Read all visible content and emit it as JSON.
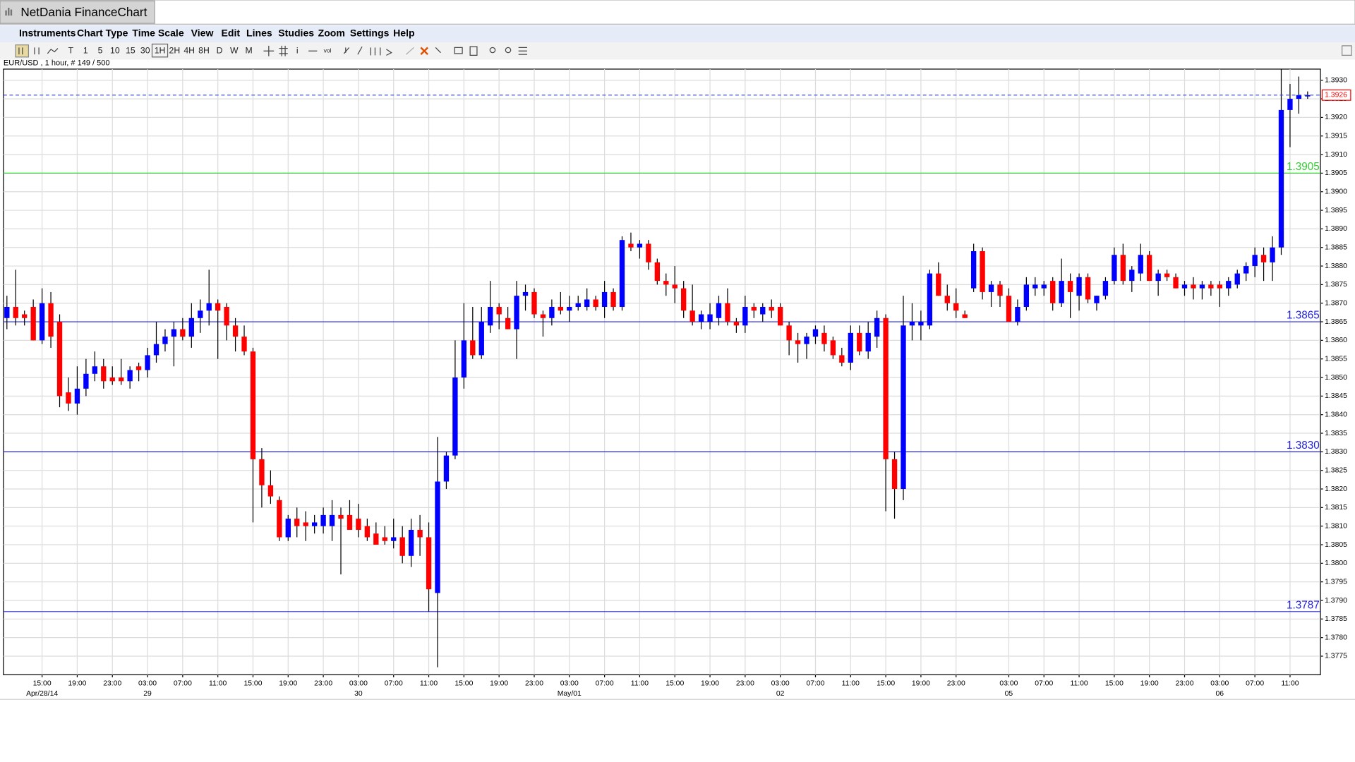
{
  "window": {
    "title": "NetDania FinanceChart",
    "menu": [
      "Instruments",
      "Chart Type",
      "Time Scale",
      "View",
      "Edit",
      "Lines",
      "Studies",
      "Zoom",
      "Settings",
      "Help"
    ],
    "toolbar": [
      "T",
      "1",
      "5",
      "10",
      "15",
      "30",
      "1H",
      "2H",
      "4H",
      "8H",
      "D",
      "W",
      "M"
    ],
    "tools": [
      "i",
      "vol"
    ]
  },
  "chart_data": {
    "type": "candlestick",
    "subtitle": "EUR/USD , 1 hour, # 149 / 500",
    "up_color": "#0000ff",
    "down_color": "#ff0000",
    "grid": true,
    "ylim": [
      1.377,
      1.3933
    ],
    "yticks": [
      1.3775,
      {
        "value": 1.378,
        "label": "1.3780"
      },
      1.3785,
      {
        "value": 1.379,
        "label": "1.3790"
      },
      1.3795,
      {
        "value": 1.38,
        "label": "1.3800"
      },
      1.3805,
      {
        "value": 1.381,
        "label": "1.3810"
      },
      1.3815,
      {
        "value": 1.382,
        "label": "1.3820"
      },
      1.3825,
      {
        "value": 1.383,
        "label": "1.3830"
      },
      1.3835,
      {
        "value": 1.384,
        "label": "1.3840"
      },
      1.3845,
      {
        "value": 1.385,
        "label": "1.3850"
      },
      1.3855,
      {
        "value": 1.386,
        "label": "1.3860"
      },
      1.3865,
      {
        "value": 1.387,
        "label": "1.3870"
      },
      1.3875,
      {
        "value": 1.388,
        "label": "1.3880"
      },
      1.3885,
      {
        "value": 1.389,
        "label": "1.3890"
      },
      1.3895,
      {
        "value": 1.39,
        "label": "1.3900"
      },
      1.3905,
      {
        "value": 1.391,
        "label": "1.3910"
      },
      1.3915,
      {
        "value": 1.392,
        "label": "1.3920"
      },
      1.3925,
      {
        "value": 1.393,
        "label": "1.3930"
      }
    ],
    "levels": [
      {
        "value": 1.3905,
        "color": "#33cc33"
      },
      {
        "value": 1.3865,
        "color": "#2222dd"
      },
      {
        "value": 1.383,
        "label": "1.3830",
        "color": "#2222dd"
      },
      {
        "value": 1.3787,
        "color": "#2222dd"
      }
    ],
    "last_price": 1.3926,
    "categories": [
      null,
      null,
      null,
      null,
      "15:00",
      null,
      null,
      null,
      "19:00",
      null,
      null,
      null,
      "23:00",
      null,
      null,
      null,
      "03:00",
      null,
      null,
      null,
      "07:00",
      null,
      null,
      null,
      "11:00",
      null,
      null,
      null,
      "15:00",
      null,
      null,
      null,
      "19:00",
      null,
      null,
      null,
      "23:00",
      null,
      null,
      null,
      "03:00",
      null,
      null,
      null,
      "07:00",
      null,
      null,
      null,
      "11:00",
      null,
      null,
      null,
      "15:00",
      null,
      null,
      null,
      "19:00",
      null,
      null,
      null,
      "23:00",
      null,
      null,
      null,
      "03:00",
      null,
      null,
      null,
      "07:00",
      null,
      null,
      null,
      "11:00",
      null,
      null,
      null,
      "15:00",
      null,
      null,
      null,
      "19:00",
      null,
      null,
      null,
      "23:00",
      null,
      null,
      null,
      "03:00",
      null,
      null,
      null,
      "07:00",
      null,
      null,
      null,
      "11:00",
      null,
      null,
      null,
      "15:00",
      null,
      null,
      null,
      "19:00",
      null,
      null,
      null,
      "23:00",
      null,
      null,
      null,
      null,
      null,
      "03:00",
      null,
      null,
      null,
      "07:00",
      null,
      null,
      null,
      "11:00",
      null,
      null,
      null,
      "15:00",
      null,
      null,
      null,
      "19:00",
      null,
      null,
      null,
      "23:00",
      null,
      null,
      null,
      "03:00",
      null,
      null,
      null,
      "07:00",
      null,
      null,
      null,
      "11:00",
      null,
      null
    ],
    "category_dates": [
      null,
      null,
      null,
      null,
      "Apr/28/14",
      null,
      null,
      null,
      null,
      null,
      null,
      null,
      null,
      null,
      null,
      null,
      "29",
      null,
      null,
      null,
      null,
      null,
      null,
      null,
      null,
      null,
      null,
      null,
      null,
      null,
      null,
      null,
      null,
      null,
      null,
      null,
      null,
      null,
      null,
      null,
      "30",
      null,
      null,
      null,
      null,
      null,
      null,
      null,
      null,
      null,
      null,
      null,
      null,
      null,
      null,
      null,
      null,
      null,
      null,
      null,
      null,
      null,
      null,
      null,
      "May/01",
      null,
      null,
      null,
      null,
      null,
      null,
      null,
      null,
      null,
      null,
      null,
      null,
      null,
      null,
      null,
      null,
      null,
      null,
      null,
      null,
      null,
      null,
      null,
      "02",
      null,
      null,
      null,
      null,
      null,
      null,
      null,
      null,
      null,
      null,
      null,
      null,
      null,
      null,
      null,
      null,
      null,
      null,
      null,
      null,
      null,
      null,
      null,
      null,
      null,
      "05",
      null,
      null,
      null,
      null,
      null,
      null,
      null,
      null,
      null,
      null,
      null,
      null,
      null,
      null,
      null,
      null,
      null,
      null,
      null,
      null,
      null,
      null,
      null,
      "06",
      null,
      null,
      null,
      null,
      null,
      null,
      null,
      null,
      null,
      null
    ],
    "open": [
      1.3866,
      1.3869,
      1.3867,
      1.3869,
      1.386,
      1.387,
      1.3865,
      1.3846,
      1.3843,
      1.3847,
      1.3851,
      1.3853,
      1.385,
      1.385,
      1.3849,
      1.3853,
      1.3852,
      1.3856,
      1.3859,
      1.3861,
      1.3863,
      1.3861,
      1.3866,
      1.3868,
      1.387,
      1.3869,
      1.3864,
      1.3861,
      1.3857,
      1.3828,
      1.3821,
      1.3817,
      1.3807,
      1.3812,
      1.3811,
      1.381,
      1.381,
      1.381,
      1.3813,
      1.3813,
      1.3812,
      1.381,
      1.3808,
      1.3807,
      1.3806,
      1.3807,
      1.3802,
      1.3809,
      1.3807,
      1.3792,
      1.3822,
      1.3829,
      1.385,
      1.386,
      1.3856,
      1.3864,
      1.3869,
      1.3866,
      1.3863,
      1.3872,
      1.3873,
      1.3867,
      1.3866,
      1.3869,
      1.3868,
      1.3869,
      1.3869,
      1.3871,
      1.3869,
      1.3873,
      1.3869,
      1.3886,
      1.3885,
      1.3886,
      1.3881,
      1.3876,
      1.3875,
      1.3874,
      1.3868,
      1.3865,
      1.3865,
      1.3866,
      1.387,
      1.3865,
      1.3864,
      1.3869,
      1.3867,
      1.3869,
      1.3869,
      1.3864,
      1.386,
      1.3859,
      1.3861,
      1.3862,
      1.386,
      1.3856,
      1.3854,
      1.3862,
      1.3857,
      1.3861,
      1.3866,
      1.3828,
      1.382,
      1.3864,
      1.3864,
      1.3864,
      1.3878,
      1.3872,
      1.387,
      1.3867,
      1.3874,
      1.3884,
      1.3873,
      1.3875,
      1.3872,
      1.3865,
      1.3869,
      1.3874,
      1.3874,
      1.3876,
      1.387,
      1.3876,
      1.3872,
      1.3877,
      1.387,
      1.3872,
      1.3876,
      1.3883,
      1.3876,
      1.3878,
      1.3883,
      1.3876,
      1.3878,
      1.3877,
      1.3874,
      1.3875,
      1.3874,
      1.3875,
      1.3875,
      1.3874,
      1.3875,
      1.3878,
      1.388,
      1.3883,
      1.3881,
      1.3885,
      1.3922,
      1.3925,
      1.3926
    ],
    "high": [
      1.3872,
      1.3879,
      1.3868,
      1.3871,
      1.3874,
      1.3873,
      1.3867,
      1.385,
      1.3853,
      1.3855,
      1.3857,
      1.3855,
      1.3853,
      1.3855,
      1.3853,
      1.3854,
      1.3858,
      1.3865,
      1.3863,
      1.3865,
      1.3866,
      1.387,
      1.3871,
      1.3879,
      1.3871,
      1.387,
      1.3866,
      1.3864,
      1.3858,
      1.3831,
      1.3825,
      1.3818,
      1.3813,
      1.3815,
      1.3814,
      1.3813,
      1.3815,
      1.3817,
      1.3815,
      1.3817,
      1.3816,
      1.3812,
      1.3811,
      1.381,
      1.3812,
      1.381,
      1.3812,
      1.3813,
      1.3811,
      1.3834,
      1.383,
      1.386,
      1.387,
      1.3869,
      1.3869,
      1.3876,
      1.387,
      1.3869,
      1.3876,
      1.3875,
      1.3874,
      1.3868,
      1.3871,
      1.3873,
      1.3872,
      1.3872,
      1.3874,
      1.3872,
      1.3876,
      1.3874,
      1.3888,
      1.3889,
      1.3887,
      1.3887,
      1.3882,
      1.3878,
      1.388,
      1.3876,
      1.3875,
      1.3868,
      1.387,
      1.3872,
      1.3874,
      1.3866,
      1.3872,
      1.387,
      1.387,
      1.3871,
      1.387,
      1.3865,
      1.3862,
      1.3862,
      1.3864,
      1.3864,
      1.3861,
      1.3858,
      1.3864,
      1.3864,
      1.3865,
      1.3868,
      1.3867,
      1.383,
      1.3872,
      1.387,
      1.3868,
      1.3879,
      1.3881,
      1.3875,
      1.3874,
      1.3868,
      1.3886,
      1.3885,
      1.3876,
      1.3876,
      1.3874,
      1.3871,
      1.3877,
      1.3877,
      1.3876,
      1.3877,
      1.3882,
      1.3878,
      1.3878,
      1.3878,
      1.3872,
      1.3877,
      1.3885,
      1.3886,
      1.388,
      1.3886,
      1.3884,
      1.3879,
      1.3879,
      1.3878,
      1.3876,
      1.3877,
      1.3876,
      1.3876,
      1.3876,
      1.3877,
      1.3879,
      1.3881,
      1.3885,
      1.3885,
      1.3888,
      1.3933,
      1.3929,
      1.3931,
      1.3927
    ],
    "low": [
      1.3863,
      1.3864,
      1.3864,
      1.386,
      1.3859,
      1.3858,
      1.3842,
      1.3841,
      1.384,
      1.3845,
      1.3849,
      1.3847,
      1.3848,
      1.3848,
      1.3847,
      1.3849,
      1.385,
      1.3854,
      1.3857,
      1.3853,
      1.386,
      1.3858,
      1.3862,
      1.3864,
      1.3855,
      1.386,
      1.3857,
      1.3856,
      1.3811,
      1.3815,
      1.3816,
      1.3806,
      1.3806,
      1.3807,
      1.3806,
      1.3808,
      1.3808,
      1.3806,
      1.3797,
      1.381,
      1.3807,
      1.3806,
      1.3805,
      1.3805,
      1.3804,
      1.38,
      1.3799,
      1.3802,
      1.3787,
      1.3772,
      1.382,
      1.3828,
      1.3847,
      1.3855,
      1.3855,
      1.3862,
      1.3863,
      1.3863,
      1.3855,
      1.3868,
      1.3866,
      1.3861,
      1.3864,
      1.3867,
      1.3865,
      1.3868,
      1.3868,
      1.3868,
      1.3866,
      1.3868,
      1.3868,
      1.3884,
      1.3882,
      1.3879,
      1.3875,
      1.3872,
      1.387,
      1.3866,
      1.3864,
      1.3863,
      1.3863,
      1.3864,
      1.3864,
      1.3862,
      1.3862,
      1.3866,
      1.3865,
      1.3866,
      1.3864,
      1.3856,
      1.3854,
      1.3855,
      1.3859,
      1.3857,
      1.3855,
      1.3853,
      1.3852,
      1.3856,
      1.3855,
      1.3858,
      1.3814,
      1.3812,
      1.3817,
      1.386,
      1.386,
      1.3863,
      1.3872,
      1.3868,
      1.3866,
      1.3866,
      1.3873,
      1.3871,
      1.3869,
      1.3869,
      1.3865,
      1.3864,
      1.3868,
      1.3872,
      1.3872,
      1.3868,
      1.3869,
      1.3866,
      1.3868,
      1.387,
      1.3868,
      1.3871,
      1.3875,
      1.3875,
      1.3873,
      1.3876,
      1.3876,
      1.3872,
      1.3876,
      1.3874,
      1.3872,
      1.3871,
      1.3871,
      1.3872,
      1.3869,
      1.3872,
      1.3874,
      1.3876,
      1.3877,
      1.3876,
      1.3876,
      1.3883,
      1.3912,
      1.3921,
      1.3925
    ],
    "close": [
      1.3869,
      1.3866,
      1.3866,
      1.386,
      1.387,
      1.3861,
      1.3845,
      1.3843,
      1.3847,
      1.3851,
      1.3853,
      1.3849,
      1.3849,
      1.3849,
      1.3852,
      1.3852,
      1.3856,
      1.3859,
      1.3861,
      1.3863,
      1.3861,
      1.3866,
      1.3868,
      1.387,
      1.3868,
      1.3864,
      1.3861,
      1.3857,
      1.3828,
      1.3821,
      1.3818,
      1.3807,
      1.3812,
      1.381,
      1.381,
      1.3811,
      1.3813,
      1.3813,
      1.3812,
      1.3809,
      1.3809,
      1.3807,
      1.3805,
      1.3806,
      1.3807,
      1.3802,
      1.3809,
      1.3807,
      1.3793,
      1.3822,
      1.3829,
      1.385,
      1.386,
      1.3856,
      1.3865,
      1.3869,
      1.3867,
      1.3863,
      1.3872,
      1.3873,
      1.3867,
      1.3866,
      1.3869,
      1.3868,
      1.3869,
      1.387,
      1.3871,
      1.3869,
      1.3873,
      1.3869,
      1.3887,
      1.3885,
      1.3886,
      1.3881,
      1.3876,
      1.3875,
      1.3874,
      1.3868,
      1.3865,
      1.3867,
      1.3867,
      1.387,
      1.3865,
      1.3864,
      1.3869,
      1.3868,
      1.3869,
      1.3868,
      1.3864,
      1.386,
      1.3859,
      1.3861,
      1.3863,
      1.3859,
      1.3856,
      1.3854,
      1.3862,
      1.3857,
      1.3862,
      1.3866,
      1.3828,
      1.382,
      1.3864,
      1.3865,
      1.3865,
      1.3878,
      1.3872,
      1.387,
      1.3868,
      1.3866,
      1.3884,
      1.3873,
      1.3875,
      1.3872,
      1.3865,
      1.3869,
      1.3875,
      1.3875,
      1.3875,
      1.387,
      1.3876,
      1.3873,
      1.3877,
      1.3871,
      1.3872,
      1.3876,
      1.3883,
      1.3876,
      1.3879,
      1.3883,
      1.3876,
      1.3878,
      1.3877,
      1.3874,
      1.3875,
      1.3874,
      1.3875,
      1.3874,
      1.3874,
      1.3876,
      1.3878,
      1.388,
      1.3883,
      1.3881,
      1.3885,
      1.3922,
      1.3925,
      1.3926,
      1.3926
    ]
  }
}
